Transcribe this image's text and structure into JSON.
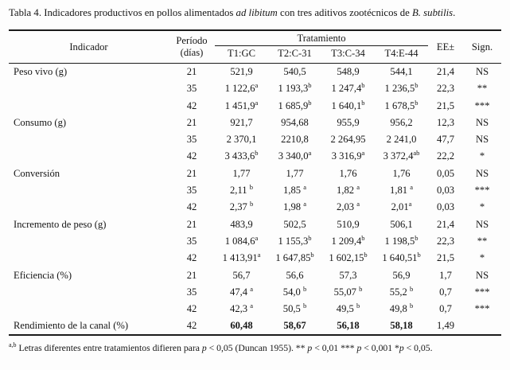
{
  "colors": {
    "ink": "#1b1b1b",
    "background": "#fdfdfd"
  },
  "title": {
    "part1": "Tabla 4. Indicadores productivos en pollos alimentados ",
    "italic1": "ad libitum",
    "part2": " con tres aditivos zootécnicos de ",
    "italic2": "B. subtilis",
    "part3": "."
  },
  "table": {
    "header": {
      "indicator": "Indicador",
      "period_line1": "Período",
      "period_line2": "(días)",
      "treatment": "Tratamiento",
      "treatments": [
        "T1:GC",
        "T2:C-31",
        "T3:C-34",
        "T4:E-44"
      ],
      "ee": "EE±",
      "sign": "Sign."
    },
    "rows": [
      {
        "indicator": "Peso vivo (g)",
        "period": "21",
        "values": [
          "521,9",
          "540,5",
          "548,9",
          "544,1"
        ],
        "ee": "21,4",
        "sign": "NS"
      },
      {
        "indicator": "",
        "period": "35",
        "values": [
          "1 122,6^a",
          "1 193,3^b",
          "1 247,4^b",
          "1 236,5^b"
        ],
        "ee": "22,3",
        "sign": "**"
      },
      {
        "indicator": "",
        "period": "42",
        "values": [
          "1 451,9^a",
          "1 685,9^b",
          "1 640,1^b",
          "1 678,5^b"
        ],
        "ee": "21,5",
        "sign": "***"
      },
      {
        "indicator": "Consumo (g)",
        "period": "21",
        "values": [
          "921,7",
          "954,68",
          "955,9",
          "956,2"
        ],
        "ee": "12,3",
        "sign": "NS"
      },
      {
        "indicator": "",
        "period": "35",
        "values": [
          "2 370,1",
          "2210,8",
          "2 264,95",
          "2 241,0"
        ],
        "ee": "47,7",
        "sign": "NS"
      },
      {
        "indicator": "",
        "period": "42",
        "values": [
          "3 433,6^b",
          "3 340,0^a",
          "3 316,9^a",
          "3 372,4^ab"
        ],
        "ee": "22,2",
        "sign": "*"
      },
      {
        "indicator": "Conversión",
        "period": "21",
        "values": [
          "1,77",
          "1,77",
          "1,76",
          "1,76"
        ],
        "ee": "0,05",
        "sign": "NS"
      },
      {
        "indicator": "",
        "period": "35",
        "values": [
          "2,11 ^b",
          "1,85 ^a",
          "1,82 ^a",
          "1,81 ^a"
        ],
        "ee": "0,03",
        "sign": "***"
      },
      {
        "indicator": "",
        "period": "42",
        "values": [
          "2,37 ^b",
          "1,98 ^a",
          "2,03 ^a",
          "2,01^a"
        ],
        "ee": "0,03",
        "sign": "*"
      },
      {
        "indicator": "Incremento de peso (g)",
        "period": "21",
        "values": [
          "483,9",
          "502,5",
          "510,9",
          "506,1"
        ],
        "ee": "21,4",
        "sign": "NS"
      },
      {
        "indicator": "",
        "period": "35",
        "values": [
          "1 084,6^a",
          "1 155,3^b",
          "1 209,4^b",
          "1 198,5^b"
        ],
        "ee": "22,3",
        "sign": "**"
      },
      {
        "indicator": "",
        "period": "42",
        "values": [
          "1 413,91^a",
          "1 647,85^b",
          "1 602,15^b",
          "1 640,51^b"
        ],
        "ee": "21,5",
        "sign": "*"
      },
      {
        "indicator": "Eficiencia (%)",
        "period": "21",
        "values": [
          "56,7",
          "56,6",
          "57,3",
          "56,9"
        ],
        "ee": "1,7",
        "sign": "NS"
      },
      {
        "indicator": "",
        "period": "35",
        "values": [
          "47,4 ^a",
          "54,0 ^b",
          "55,07 ^b",
          "55,2 ^b"
        ],
        "ee": "0,7",
        "sign": "***"
      },
      {
        "indicator": "",
        "period": "42",
        "values": [
          "42,3 ^a",
          "50,5 ^b",
          "49,5 ^b",
          "49,8 ^b"
        ],
        "ee": "0,7",
        "sign": "***"
      },
      {
        "indicator": "Rendimiento de la canal (%)",
        "period": "42",
        "values": [
          "60,48",
          "58,67",
          "56,18",
          "58,18"
        ],
        "ee": "1,49",
        "sign": "",
        "bold_values": true
      }
    ]
  },
  "footnote": {
    "segments": [
      {
        "t": "sup",
        "v": "a,b"
      },
      {
        "t": "text",
        "v": " Letras diferentes entre tratamientos difieren para "
      },
      {
        "t": "italic",
        "v": "p"
      },
      {
        "t": "text",
        "v": " < 0,05 (Duncan 1955).  ** "
      },
      {
        "t": "italic",
        "v": "p"
      },
      {
        "t": "text",
        "v": " < 0,01 *** "
      },
      {
        "t": "italic",
        "v": "p"
      },
      {
        "t": "text",
        "v": " < 0,001 *"
      },
      {
        "t": "italic",
        "v": "p"
      },
      {
        "t": "text",
        "v": " < 0,05."
      }
    ]
  }
}
